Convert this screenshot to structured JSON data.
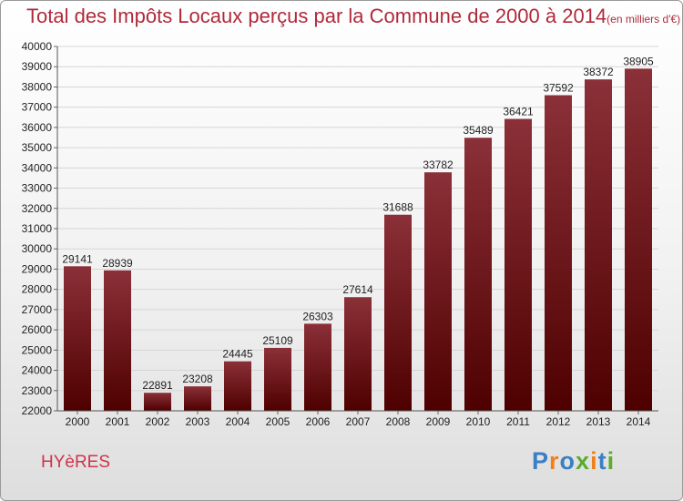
{
  "title": "Total des Impôts Locaux perçus par la Commune de 2000 à 2014",
  "unit": "(en milliers d'€)",
  "commune": "HYèRES",
  "brand": {
    "letters": [
      "P",
      "r",
      "o",
      "x",
      "i",
      "t",
      "i"
    ],
    "colors": [
      "#3b7fc4",
      "#f07f1a",
      "#3b7fc4",
      "#5aac2f",
      "#f07f1a",
      "#3b7fc4",
      "#5aac2f"
    ]
  },
  "colors": {
    "title": "#b02a3b",
    "bar_top": "#8b3038",
    "bar_bottom": "#4e0000"
  },
  "chart_data": {
    "type": "bar",
    "title": "Total des Impôts Locaux perçus par la Commune de 2000 à 2014",
    "xlabel": "",
    "ylabel": "",
    "ylim": [
      22000,
      40000
    ],
    "yticks": [
      22000,
      23000,
      24000,
      25000,
      26000,
      27000,
      28000,
      29000,
      30000,
      31000,
      32000,
      33000,
      34000,
      35000,
      36000,
      37000,
      38000,
      39000,
      40000
    ],
    "grid": true,
    "categories": [
      "2000",
      "2001",
      "2002",
      "2003",
      "2004",
      "2005",
      "2006",
      "2007",
      "2008",
      "2009",
      "2010",
      "2011",
      "2012",
      "2013",
      "2014"
    ],
    "values": [
      29141,
      28939,
      22891,
      23208,
      24445,
      25109,
      26303,
      27614,
      31688,
      33782,
      35489,
      36421,
      37592,
      38372,
      38905
    ]
  }
}
